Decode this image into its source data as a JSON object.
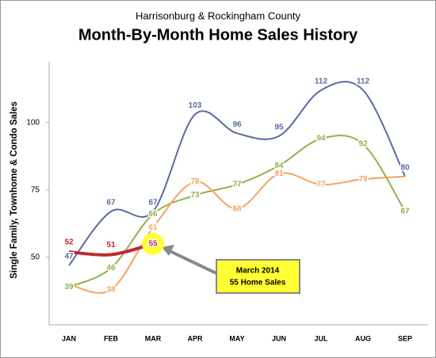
{
  "chart_data": {
    "type": "line",
    "title": "Month-By-Month Home Sales History",
    "subtitle": "Harrisonburg & Rockingham County",
    "y_label": "Single Family, Townhome & Condo Sales",
    "categories": [
      "JAN",
      "FEB",
      "MAR",
      "APR",
      "MAY",
      "JUN",
      "JUL",
      "AUG",
      "SEP"
    ],
    "series": [
      {
        "color": "#5b6aa3",
        "values": [
          47,
          67,
          67,
          103,
          96,
          95,
          112,
          112,
          80
        ]
      },
      {
        "color": "#8fb24b",
        "values": [
          39,
          46,
          66,
          73,
          77,
          84,
          94,
          92,
          67
        ]
      },
      {
        "color": "#f4a262",
        "values": [
          40,
          38,
          61,
          78,
          68,
          81,
          77,
          79,
          80
        ],
        "value_labels": [
          null,
          "38",
          "61",
          "78",
          "68",
          "81",
          "77",
          "79",
          null
        ]
      },
      {
        "color": "#c0282c",
        "values": [
          52,
          51,
          55,
          null,
          null,
          null,
          null,
          null,
          null
        ]
      }
    ],
    "annotation": [
      "March 2014",
      "55 Home Sales"
    ],
    "ylim": [
      25,
      119
    ],
    "yticks": [
      50,
      75,
      100
    ],
    "grid": false
  }
}
